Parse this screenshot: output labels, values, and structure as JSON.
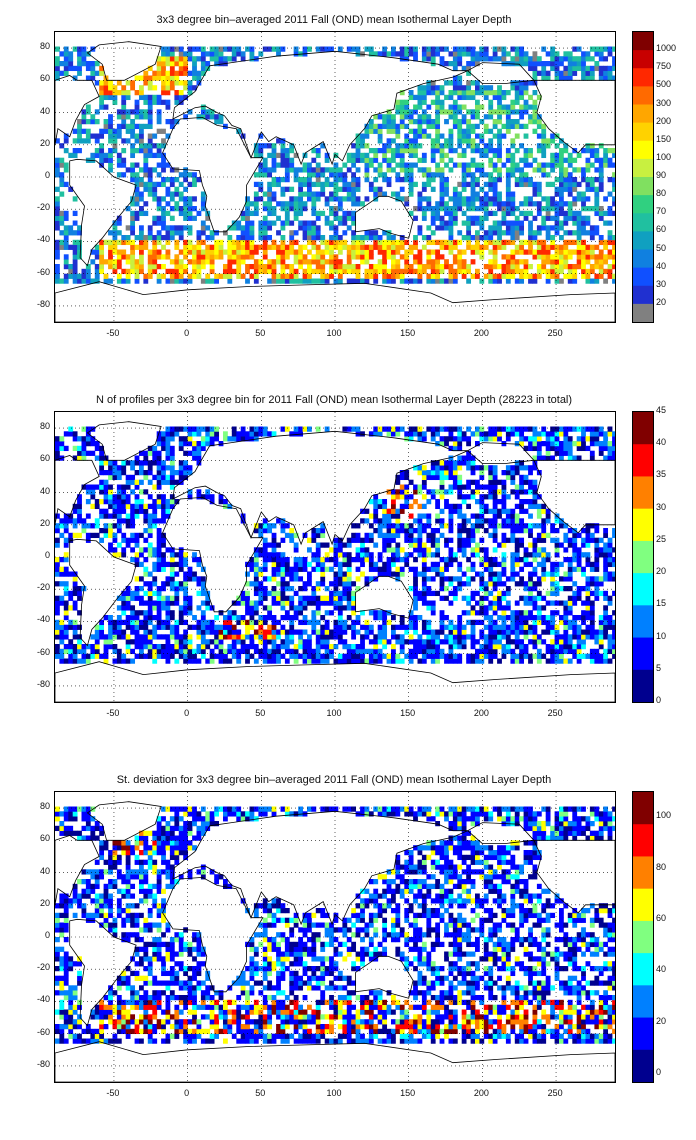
{
  "maps": [
    {
      "title": "3x3 degree bin–averaged 2011 Fall (OND) mean Isothermal Layer Depth",
      "colorbar_ticks": [
        "1000",
        "750",
        "500",
        "300",
        "200",
        "150",
        "100",
        "90",
        "80",
        "70",
        "60",
        "50",
        "40",
        "30",
        "20"
      ],
      "colorbar_type": "discrete",
      "palette": [
        "#7f0000",
        "#c80000",
        "#ff2800",
        "#ff6a00",
        "#ffa600",
        "#ffd200",
        "#ffff00",
        "#c8f040",
        "#80e060",
        "#30d080",
        "#20c0a0",
        "#10a0c0",
        "#1080e0",
        "#1050ff",
        "#2030d0",
        "#808080"
      ],
      "patches": [
        {
          "region": "north-atlantic-subpolar",
          "lon": [
            -60,
            0
          ],
          "lat": [
            50,
            75
          ],
          "level": "high"
        },
        {
          "region": "southern-ocean-band",
          "lon": [
            -60,
            290
          ],
          "lat": [
            -63,
            -40
          ],
          "level": "high"
        },
        {
          "region": "north-pacific",
          "lon": [
            120,
            290
          ],
          "lat": [
            0,
            55
          ],
          "level": "mid"
        }
      ]
    },
    {
      "title": "N of profiles per 3x3 degree bin for 2011 Fall (OND) mean Isothermal Layer Depth  (28223 in total)",
      "colorbar_ticks": [
        "45",
        "40",
        "35",
        "30",
        "25",
        "20",
        "15",
        "10",
        "5",
        "0"
      ],
      "colorbar_type": "continuous",
      "palette": [
        "#00008f",
        "#0000ff",
        "#0080ff",
        "#00ffff",
        "#80ff80",
        "#ffff00",
        "#ff8000",
        "#ff0000",
        "#800000"
      ],
      "patches": [
        {
          "region": "kuroshio",
          "lon": [
            130,
            160
          ],
          "lat": [
            25,
            45
          ],
          "level": "high"
        },
        {
          "region": "argentine-basin",
          "lon": [
            20,
            60
          ],
          "lat": [
            -50,
            -40
          ],
          "level": "high"
        }
      ]
    },
    {
      "title": "St. deviation for 3x3 degree bin–averaged 2011 Fall (OND) mean Isothermal Layer Depth",
      "colorbar_ticks": [
        "100",
        "80",
        "60",
        "40",
        "20",
        "0"
      ],
      "colorbar_type": "continuous",
      "palette": [
        "#00008f",
        "#0000ff",
        "#0080ff",
        "#00ffff",
        "#80ff80",
        "#ffff00",
        "#ff8000",
        "#ff0000",
        "#800000"
      ],
      "patches": [
        {
          "region": "north-atlantic-subpolar",
          "lon": [
            -50,
            -20
          ],
          "lat": [
            50,
            70
          ],
          "level": "high"
        },
        {
          "region": "southern-ocean-band",
          "lon": [
            -60,
            290
          ],
          "lat": [
            -60,
            -40
          ],
          "level": "high"
        }
      ]
    }
  ],
  "axes": {
    "x_ticks": [
      "-50",
      "0",
      "50",
      "100",
      "150",
      "200",
      "250"
    ],
    "x_values": [
      -50,
      0,
      50,
      100,
      150,
      200,
      250
    ],
    "x_range": [
      -90,
      290
    ],
    "y_ticks": [
      "80",
      "60",
      "40",
      "20",
      "0",
      "-20",
      "-40",
      "-60",
      "-80"
    ],
    "y_values": [
      80,
      60,
      40,
      20,
      0,
      -20,
      -40,
      -60,
      -80
    ],
    "y_range": [
      -90,
      90
    ],
    "grid": "dotted"
  }
}
